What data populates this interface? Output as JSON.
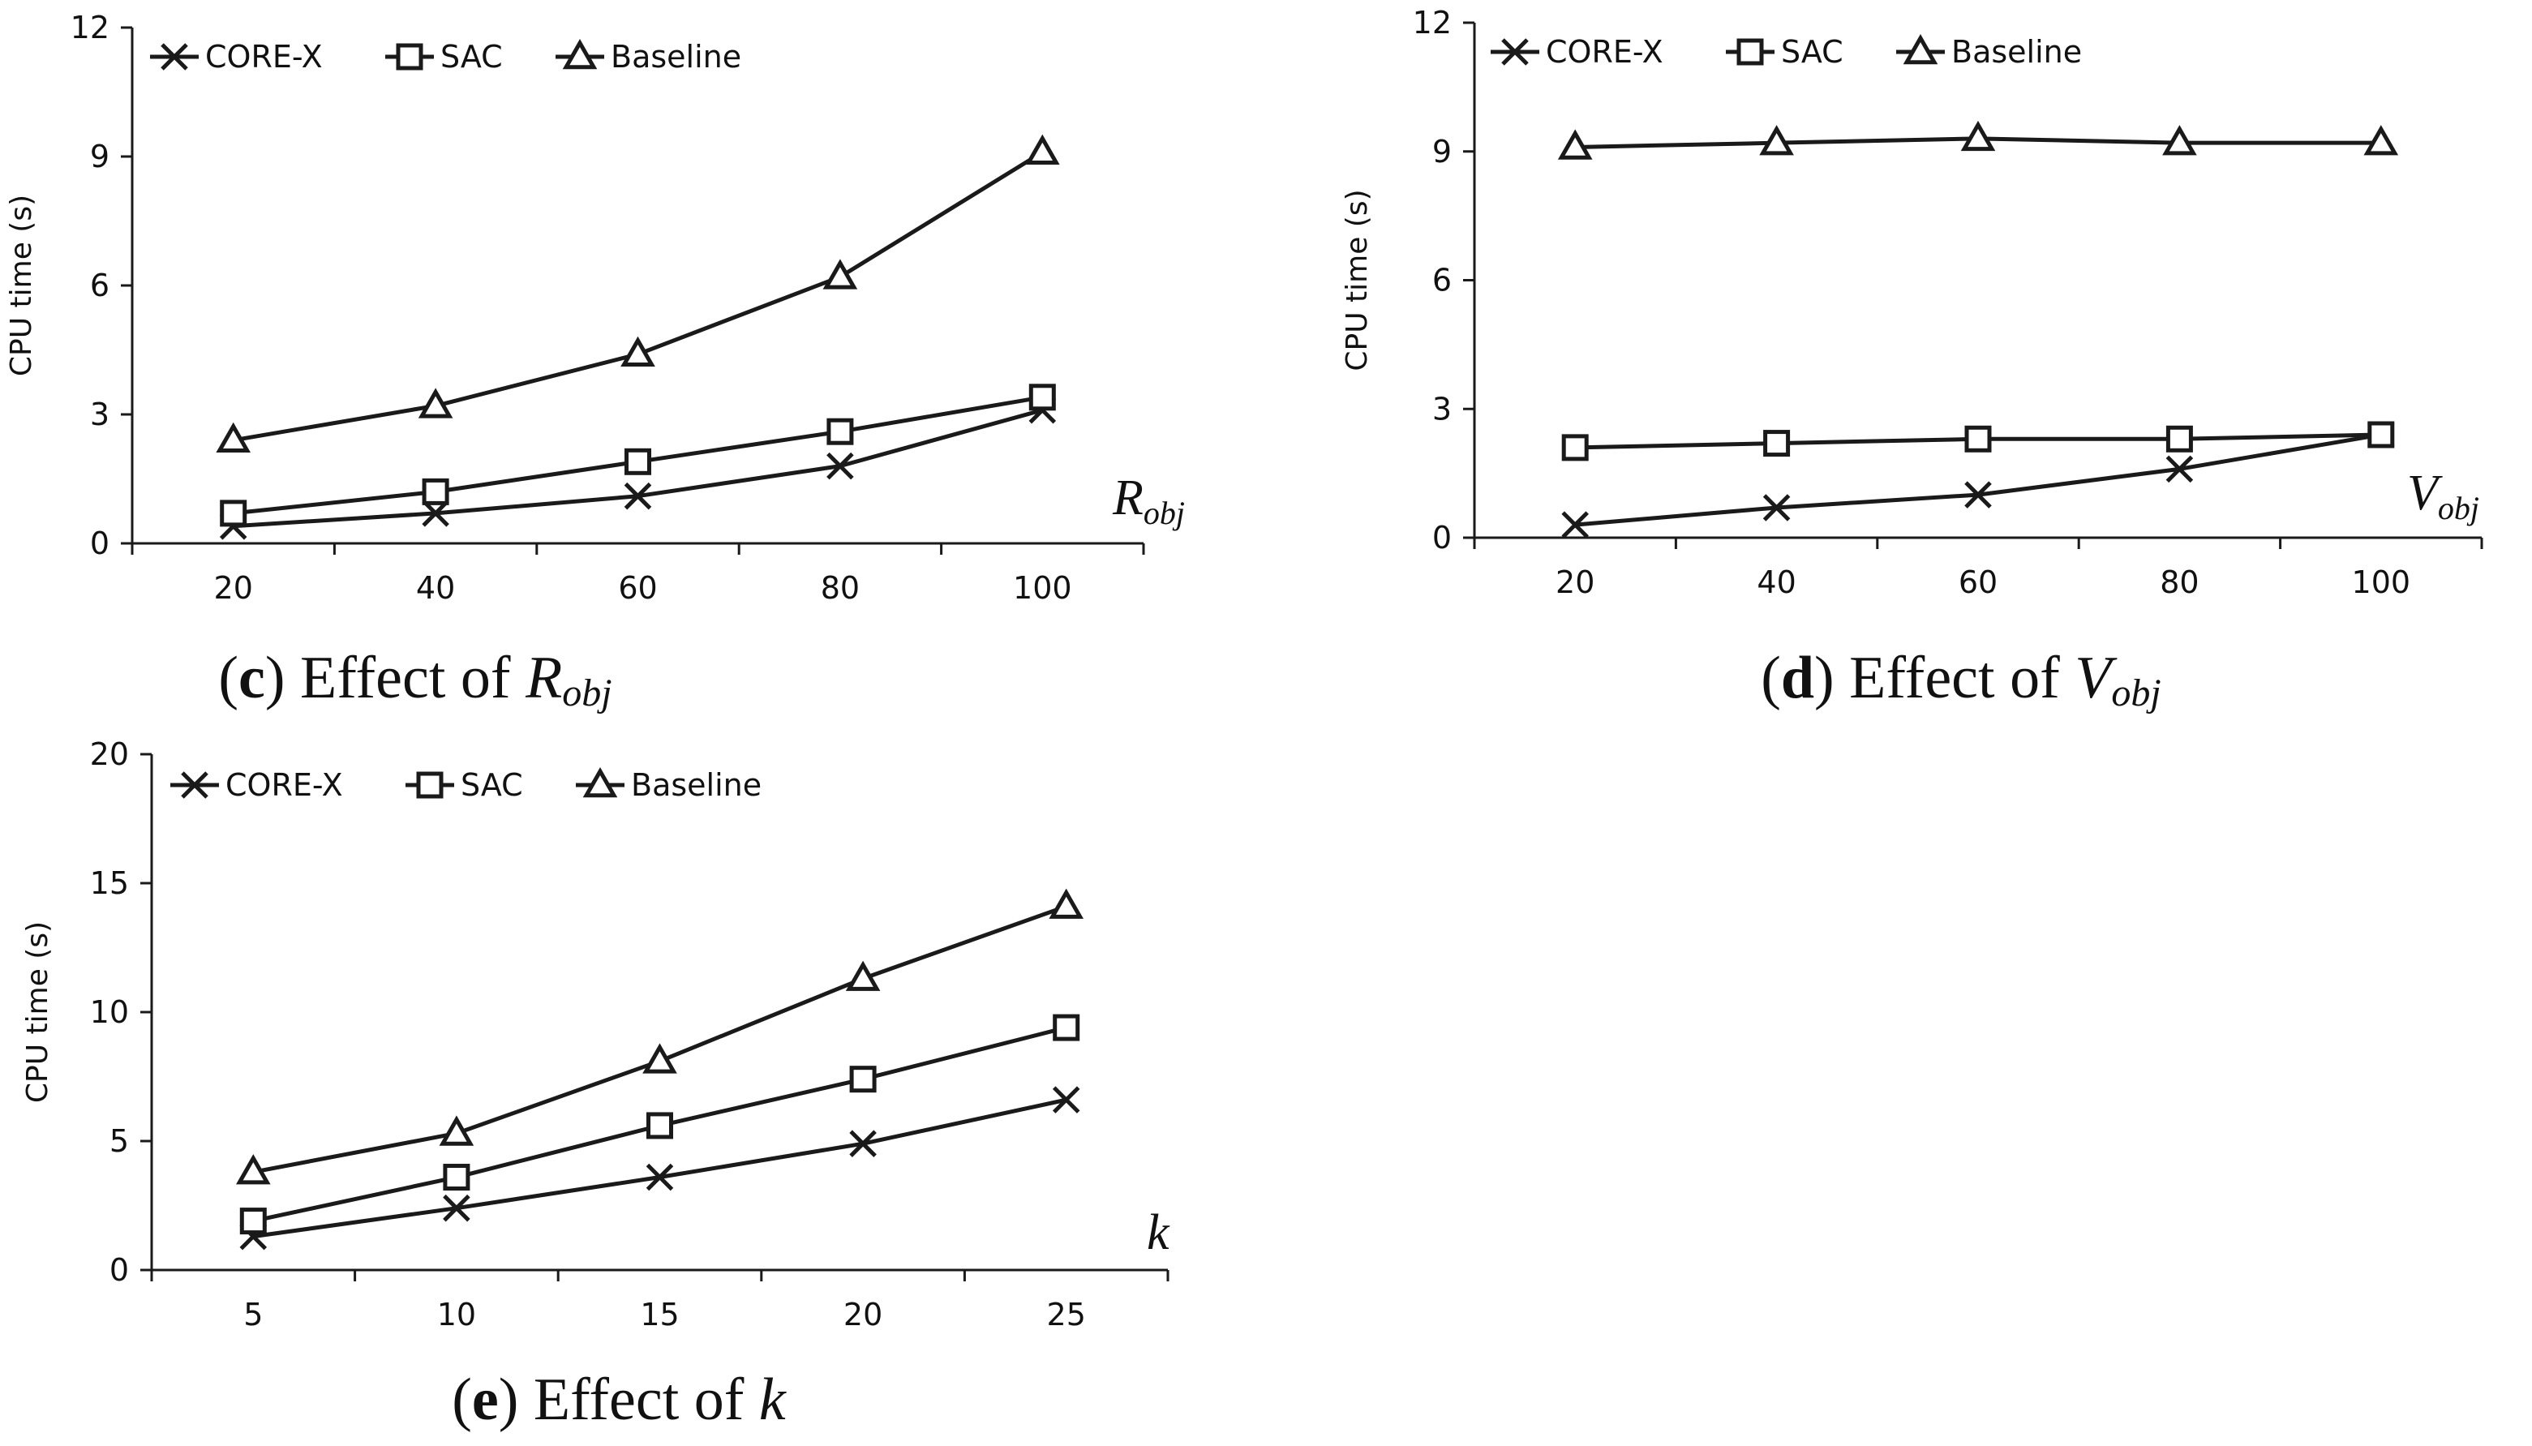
{
  "chart_data": [
    {
      "id": "c",
      "type": "line",
      "caption": {
        "letter": "c",
        "text": "Effect of",
        "var_main": "R",
        "var_sub": "obj"
      },
      "xlabel": {
        "main": "R",
        "sub": "obj"
      },
      "ylabel": "CPU time (s)",
      "x": [
        "20",
        "40",
        "60",
        "80",
        "100"
      ],
      "ylim": [
        0,
        12
      ],
      "yticks": [
        "0",
        "3",
        "6",
        "9",
        "12"
      ],
      "legend_position": "top-left",
      "grid": false,
      "series": [
        {
          "name": "CORE-X",
          "marker": "x",
          "values": [
            0.4,
            0.7,
            1.1,
            1.8,
            3.1
          ]
        },
        {
          "name": "SAC",
          "marker": "square",
          "values": [
            0.7,
            1.2,
            1.9,
            2.6,
            3.4
          ]
        },
        {
          "name": "Baseline",
          "marker": "triangle",
          "values": [
            2.4,
            3.2,
            4.4,
            6.2,
            9.1
          ]
        }
      ]
    },
    {
      "id": "d",
      "type": "line",
      "caption": {
        "letter": "d",
        "text": "Effect of",
        "var_main": "V",
        "var_sub": "obj"
      },
      "xlabel": {
        "main": "V",
        "sub": "obj"
      },
      "ylabel": "CPU time (s)",
      "x": [
        "20",
        "40",
        "60",
        "80",
        "100"
      ],
      "ylim": [
        0,
        12
      ],
      "yticks": [
        "0",
        "3",
        "6",
        "9",
        "12"
      ],
      "legend_position": "top-left",
      "grid": false,
      "series": [
        {
          "name": "CORE-X",
          "marker": "x",
          "values": [
            0.3,
            0.7,
            1.0,
            1.6,
            2.4
          ]
        },
        {
          "name": "SAC",
          "marker": "square",
          "values": [
            2.1,
            2.2,
            2.3,
            2.3,
            2.4
          ]
        },
        {
          "name": "Baseline",
          "marker": "triangle",
          "values": [
            9.1,
            9.2,
            9.3,
            9.2,
            9.2
          ]
        }
      ]
    },
    {
      "id": "e",
      "type": "line",
      "caption": {
        "letter": "e",
        "text": "Effect of",
        "var_main": "k",
        "var_sub": ""
      },
      "xlabel": {
        "main": "k",
        "sub": ""
      },
      "ylabel": "CPU time (s)",
      "x": [
        "5",
        "10",
        "15",
        "20",
        "25"
      ],
      "ylim": [
        0,
        20
      ],
      "yticks": [
        "0",
        "5",
        "10",
        "15",
        "20"
      ],
      "legend_position": "top-left",
      "grid": false,
      "series": [
        {
          "name": "CORE-X",
          "marker": "x",
          "values": [
            1.3,
            2.4,
            3.6,
            4.9,
            6.6
          ]
        },
        {
          "name": "SAC",
          "marker": "square",
          "values": [
            1.9,
            3.6,
            5.6,
            7.4,
            9.4
          ]
        },
        {
          "name": "Baseline",
          "marker": "triangle",
          "values": [
            3.8,
            5.3,
            8.1,
            11.3,
            14.1
          ]
        }
      ]
    }
  ]
}
